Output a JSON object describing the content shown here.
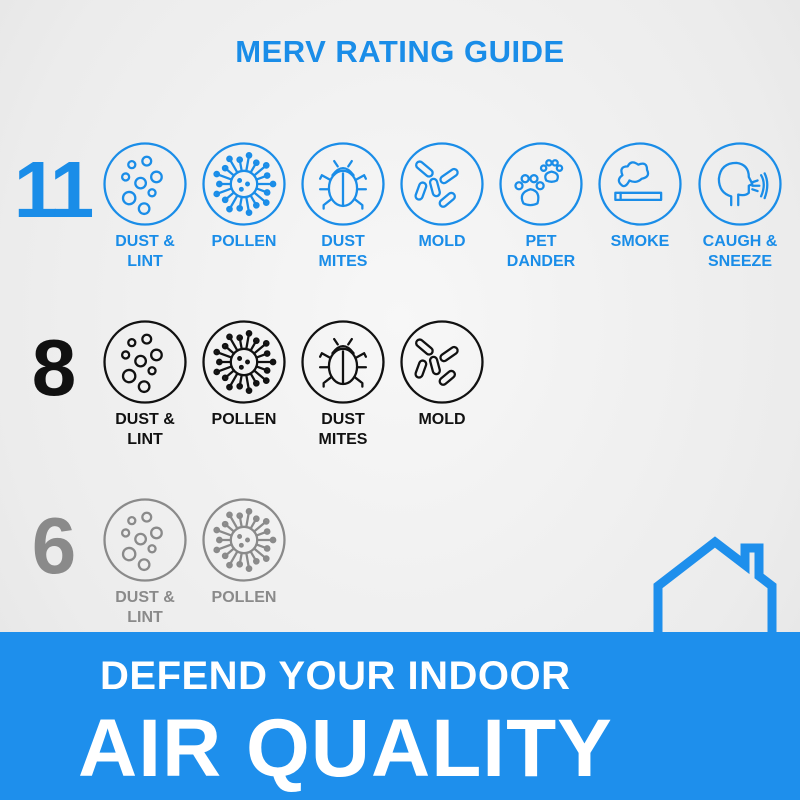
{
  "title": "MERV RATING GUIDE",
  "colors": {
    "merv11": "#1a8de8",
    "merv8": "#111111",
    "merv6": "#8a8a8a",
    "banner": "#1e8fec"
  },
  "ratings": [
    {
      "number": "11",
      "color": "#1a8de8",
      "items": [
        {
          "icon": "dust-lint-icon",
          "label": [
            "DUST &",
            "LINT"
          ]
        },
        {
          "icon": "pollen-icon",
          "label": [
            "POLLEN"
          ]
        },
        {
          "icon": "dust-mite-icon",
          "label": [
            "DUST",
            "MITES"
          ]
        },
        {
          "icon": "mold-icon",
          "label": [
            "MOLD"
          ]
        },
        {
          "icon": "paw-icon",
          "label": [
            "PET",
            "DANDER"
          ]
        },
        {
          "icon": "smoke-icon",
          "label": [
            "SMOKE"
          ]
        },
        {
          "icon": "sneeze-icon",
          "label": [
            "CAUGH &",
            "SNEEZE"
          ]
        }
      ]
    },
    {
      "number": "8",
      "color": "#111111",
      "items": [
        {
          "icon": "dust-lint-icon",
          "label": [
            "DUST &",
            "LINT"
          ]
        },
        {
          "icon": "pollen-icon",
          "label": [
            "POLLEN"
          ]
        },
        {
          "icon": "dust-mite-icon",
          "label": [
            "DUST",
            "MITES"
          ]
        },
        {
          "icon": "mold-icon",
          "label": [
            "MOLD"
          ]
        }
      ]
    },
    {
      "number": "6",
      "color": "#8a8a8a",
      "items": [
        {
          "icon": "dust-lint-icon",
          "label": [
            "DUST &",
            "LINT"
          ]
        },
        {
          "icon": "pollen-icon",
          "label": [
            "POLLEN"
          ]
        }
      ]
    }
  ],
  "banner": {
    "line1": "DEFEND YOUR INDOOR",
    "line2": "AIR QUALITY"
  }
}
